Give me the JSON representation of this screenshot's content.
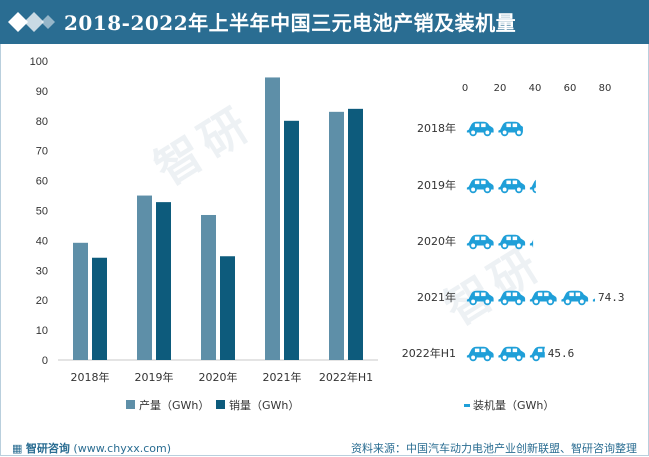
{
  "header": {
    "title": "2018-2022年上半年中国三元电池产销及装机量",
    "colors": {
      "bar_bg": "#2a6d92",
      "text": "#ffffff"
    }
  },
  "footer": {
    "brand": "智研咨询",
    "url": "(www.chyxx.com)",
    "source": "资料来源：中国汽车动力电池产业创新联盟、智研咨询整理"
  },
  "chart_data": [
    {
      "type": "bar",
      "categories": [
        "2018年",
        "2019年",
        "2020年",
        "2021年",
        "2022年H1"
      ],
      "series": [
        {
          "name": "产量（GWh）",
          "values": [
            39.2,
            55.0,
            48.5,
            94.5,
            83.0
          ],
          "color": "#5e8fa8"
        },
        {
          "name": "销量（GWh）",
          "values": [
            34.2,
            52.8,
            34.7,
            80.0,
            84.0
          ],
          "color": "#0d5b7c"
        }
      ],
      "ylim": [
        0,
        100
      ],
      "yticks": [
        "0",
        "10",
        "20",
        "30",
        "40",
        "50",
        "60",
        "70",
        "80",
        "90",
        "100"
      ],
      "legend_position": "bottom",
      "grid": false
    },
    {
      "type": "bar",
      "orientation": "horizontal",
      "pictogram": "car-icon",
      "categories": [
        "2018年",
        "2019年",
        "2020年",
        "2021年",
        "2022年H1"
      ],
      "series": [
        {
          "name": "装机量（GWh）",
          "values": [
            33.1,
            40.5,
            38.9,
            74.3,
            45.6
          ],
          "color": "#1f9fd8"
        }
      ],
      "data_labels": [
        "",
        "",
        "",
        "74.3",
        "45.6"
      ],
      "xlim": [
        0,
        80
      ],
      "xticks": [
        "0",
        "20",
        "40",
        "60",
        "80"
      ],
      "xaxis_position": "top",
      "legend_position": "bottom",
      "grid": false
    }
  ]
}
